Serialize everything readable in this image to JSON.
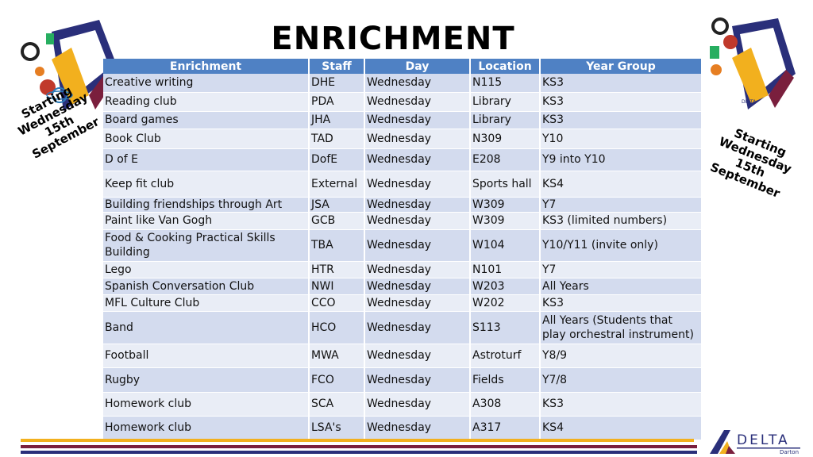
{
  "title": "ENRICHMENT",
  "side_notes": {
    "left": [
      "Starting",
      "Wednesday",
      "15th September"
    ],
    "right": [
      "Starting",
      "Wednesday 15th",
      "September"
    ]
  },
  "table": {
    "headers": [
      "Enrichment",
      "Staff",
      "Day",
      "Location",
      "Year Group"
    ],
    "rows": [
      [
        "Creative writing",
        "DHE",
        "Wednesday",
        "N115",
        "KS3"
      ],
      [
        "Reading club",
        "PDA",
        "Wednesday",
        "Library",
        "KS3"
      ],
      [
        "Board games",
        "JHA",
        "Wednesday",
        "Library",
        "KS3"
      ],
      [
        "Book Club",
        "TAD",
        "Wednesday",
        "N309",
        "Y10"
      ],
      [
        "D of E",
        "DofE",
        "Wednesday",
        "E208",
        "Y9 into Y10"
      ],
      [
        "Keep fit club",
        "External",
        "Wednesday",
        "Sports hall",
        "KS4"
      ],
      [
        "Building friendships through Art",
        "JSA",
        "Wednesday",
        "W309",
        "Y7"
      ],
      [
        "Paint like Van Gogh",
        "GCB",
        "Wednesday",
        "W309",
        "KS3 (limited numbers)"
      ],
      [
        " Food & Cooking Practical Skills Building",
        "TBA",
        "Wednesday",
        "W104",
        "Y10/Y11 (invite only)"
      ],
      [
        "Lego",
        "HTR",
        "Wednesday",
        "N101",
        "Y7"
      ],
      [
        "Spanish Conversation  Club",
        "NWI",
        "Wednesday",
        "W203",
        "All Years"
      ],
      [
        "MFL Culture Club",
        "CCO",
        "Wednesday",
        "W202",
        "KS3"
      ],
      [
        "Band",
        "HCO",
        "Wednesday",
        "S113",
        "All Years (Students that play orchestral instrument)"
      ],
      [
        "Football",
        "MWA",
        "Wednesday",
        "Astroturf",
        "Y8/9"
      ],
      [
        "Rugby",
        "FCO",
        "Wednesday",
        "Fields",
        "Y7/8"
      ],
      [
        "Homework club",
        "SCA",
        "Wednesday",
        "A308",
        "KS3"
      ],
      [
        "Homework club",
        "LSA's",
        "Wednesday",
        "A317",
        "KS4"
      ]
    ]
  },
  "logo": {
    "text": "DELTA",
    "subtext": "Darton"
  },
  "colors": {
    "header_blue": "#4f81c4",
    "row_dark": "#d3dbee",
    "row_light": "#e9edf6",
    "gold": "#f2b01e",
    "maroon": "#7a1f3d",
    "navy": "#2a2f7a"
  }
}
